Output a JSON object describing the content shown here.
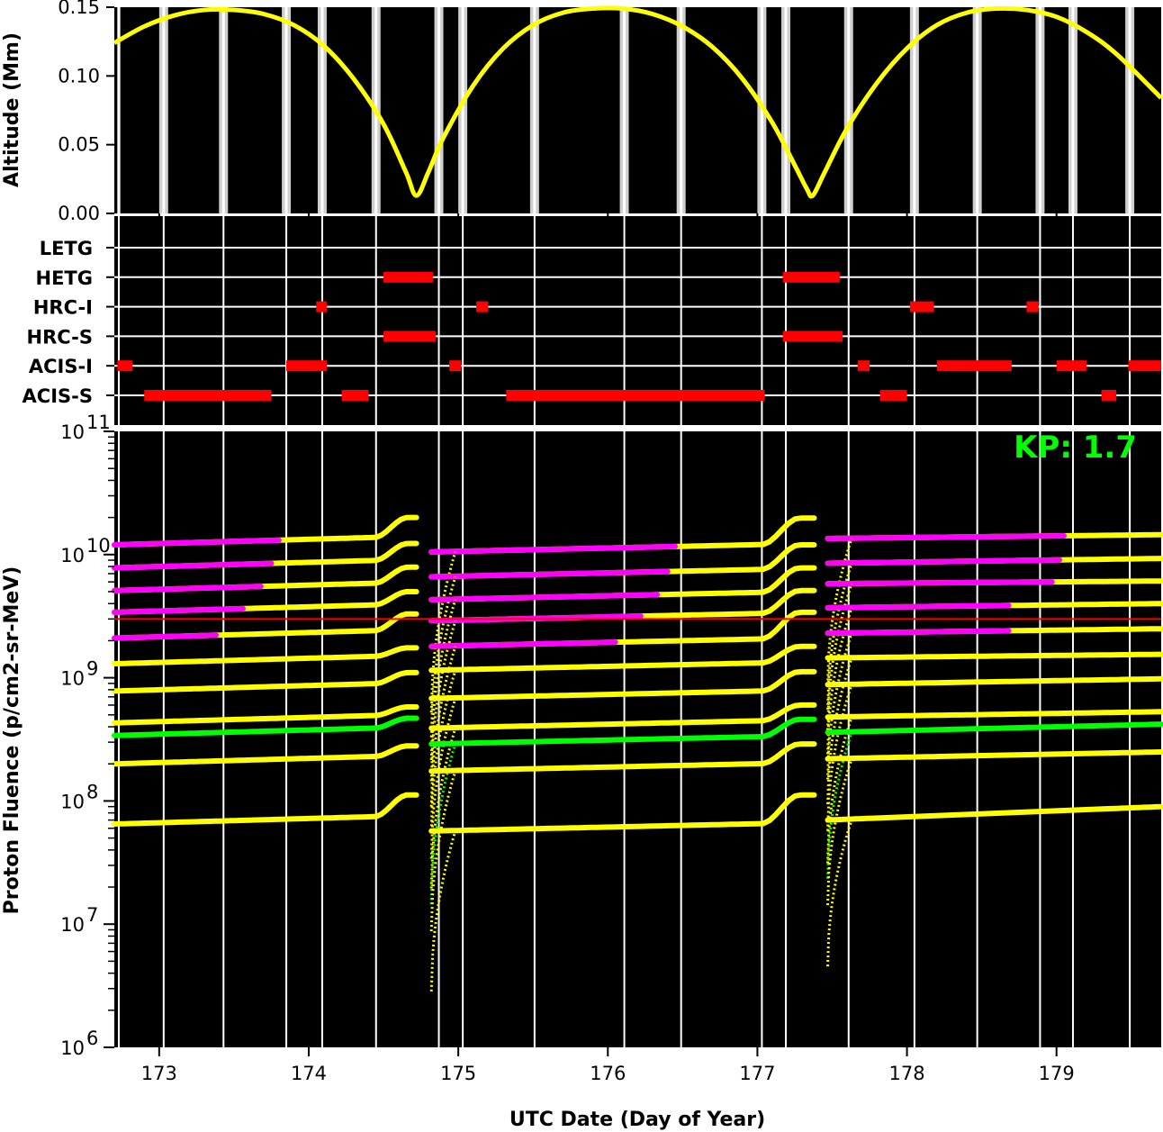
{
  "chart_data": [
    {
      "type": "line",
      "panel": "altitude",
      "ylabel": "Altitude (Mm)",
      "xlim": [
        172.7,
        179.7
      ],
      "ylim": [
        0,
        0.15
      ],
      "yticks": [
        "0.00",
        "0.05",
        "0.10",
        "0.15"
      ],
      "series": [
        {
          "color": "#ffff00",
          "x": [
            172.7,
            172.9,
            173.1,
            173.3,
            173.5,
            173.7,
            173.9,
            174.1,
            174.3,
            174.5,
            174.65,
            174.72,
            174.8,
            174.9,
            175.1,
            175.3,
            175.5,
            175.7,
            175.9,
            176.1,
            176.3,
            176.5,
            176.7,
            176.9,
            177.1,
            177.25,
            177.33,
            177.37,
            177.45,
            177.6,
            177.8,
            178.0,
            178.2,
            178.4,
            178.6,
            178.8,
            179.0,
            179.2,
            179.4,
            179.7
          ],
          "y": [
            0.124,
            0.136,
            0.144,
            0.148,
            0.148,
            0.145,
            0.137,
            0.122,
            0.098,
            0.065,
            0.03,
            0.013,
            0.03,
            0.055,
            0.093,
            0.12,
            0.137,
            0.146,
            0.149,
            0.149,
            0.145,
            0.136,
            0.121,
            0.098,
            0.066,
            0.035,
            0.018,
            0.013,
            0.03,
            0.062,
            0.095,
            0.12,
            0.137,
            0.146,
            0.149,
            0.148,
            0.143,
            0.132,
            0.116,
            0.084
          ]
        }
      ],
      "shaded_intervals": [
        [
          172.72,
          172.74
        ],
        [
          173.0,
          173.06
        ],
        [
          173.4,
          173.46
        ],
        [
          173.82,
          173.88
        ],
        [
          174.06,
          174.12
        ],
        [
          174.42,
          174.48
        ],
        [
          174.84,
          174.9
        ],
        [
          175.0,
          175.06
        ],
        [
          175.48,
          175.54
        ],
        [
          176.08,
          176.14
        ],
        [
          176.46,
          176.52
        ],
        [
          177.0,
          177.06
        ],
        [
          177.16,
          177.22
        ],
        [
          177.58,
          177.64
        ],
        [
          178.02,
          178.08
        ],
        [
          178.44,
          178.5
        ],
        [
          178.86,
          178.92
        ],
        [
          179.08,
          179.14
        ],
        [
          179.46,
          179.52
        ]
      ]
    },
    {
      "type": "scatter",
      "panel": "instruments",
      "instruments": [
        "LETG",
        "HETG",
        "HRC-I",
        "HRC-S",
        "ACIS-I",
        "ACIS-S"
      ],
      "color": "#ff0000",
      "segments": [
        {
          "instrument": "HETG",
          "start": 174.5,
          "end": 174.83
        },
        {
          "instrument": "HETG",
          "start": 177.17,
          "end": 177.55
        },
        {
          "instrument": "HRC-I",
          "start": 174.05,
          "end": 174.12
        },
        {
          "instrument": "HRC-I",
          "start": 175.12,
          "end": 175.2
        },
        {
          "instrument": "HRC-I",
          "start": 178.02,
          "end": 178.18
        },
        {
          "instrument": "HRC-I",
          "start": 178.8,
          "end": 178.88
        },
        {
          "instrument": "HRC-S",
          "start": 174.5,
          "end": 174.85
        },
        {
          "instrument": "HRC-S",
          "start": 177.17,
          "end": 177.57
        },
        {
          "instrument": "ACIS-I",
          "start": 172.72,
          "end": 172.82
        },
        {
          "instrument": "ACIS-I",
          "start": 173.85,
          "end": 174.12
        },
        {
          "instrument": "ACIS-I",
          "start": 174.94,
          "end": 175.02
        },
        {
          "instrument": "ACIS-I",
          "start": 177.67,
          "end": 177.75
        },
        {
          "instrument": "ACIS-I",
          "start": 178.2,
          "end": 178.7
        },
        {
          "instrument": "ACIS-I",
          "start": 179.0,
          "end": 179.2
        },
        {
          "instrument": "ACIS-I",
          "start": 179.48,
          "end": 179.7
        },
        {
          "instrument": "ACIS-S",
          "start": 172.9,
          "end": 173.75
        },
        {
          "instrument": "ACIS-S",
          "start": 174.22,
          "end": 174.4
        },
        {
          "instrument": "ACIS-S",
          "start": 175.32,
          "end": 177.05
        },
        {
          "instrument": "ACIS-S",
          "start": 177.82,
          "end": 178.0
        },
        {
          "instrument": "ACIS-S",
          "start": 179.3,
          "end": 179.4
        }
      ]
    },
    {
      "type": "scatter",
      "panel": "fluence",
      "xlabel": "UTC Date (Day of Year)",
      "ylabel": "Proton Fluence (p/cm2-sr-MeV)",
      "xlim": [
        172.7,
        179.7
      ],
      "ylim": [
        1000000,
        100000000000
      ],
      "yscale": "log",
      "xticks": [
        "173",
        "174",
        "175",
        "176",
        "177",
        "178",
        "179"
      ],
      "ytick_exponents": [
        "6",
        "7",
        "8",
        "9",
        "10",
        "11"
      ],
      "threshold": 3000000000,
      "threshold_color": "#ff0000",
      "annotation": "KP: 1.7",
      "orbit_segments": [
        {
          "start": 172.7,
          "end": 174.72,
          "rise_start": 174.44,
          "rise_end": 174.66
        },
        {
          "start": 174.82,
          "end": 177.38,
          "rise_start": 177.03,
          "rise_end": 177.28
        },
        {
          "start": 177.47,
          "end": 179.7,
          "rise_start": 179.7,
          "rise_end": 179.7
        }
      ],
      "curves": [
        {
          "seg_values": [
            [
              12000000000,
              20000000000
            ],
            [
              10500000000,
              19800000000
            ],
            [
              13500000000,
              14500000000
            ]
          ],
          "magenta_until": [
            173.8,
            176.45,
            179.05
          ]
        },
        {
          "seg_values": [
            [
              7800000000,
              12300000000
            ],
            [
              6600000000,
              12000000000
            ],
            [
              8500000000,
              9300000000
            ]
          ],
          "magenta_until": [
            173.75,
            176.4,
            179.02
          ]
        },
        {
          "seg_values": [
            [
              5100000000,
              7900000000
            ],
            [
              4300000000,
              7800000000
            ],
            [
              5800000000,
              6100000000
            ]
          ],
          "magenta_until": [
            173.68,
            176.33,
            178.97
          ]
        },
        {
          "seg_values": [
            [
              3400000000,
              5000000000
            ],
            [
              2900000000,
              5100000000
            ],
            [
              3700000000,
              4000000000
            ]
          ],
          "magenta_until": [
            173.56,
            176.22,
            178.68
          ]
        },
        {
          "seg_values": [
            [
              2100000000,
              3300000000
            ],
            [
              1800000000,
              3400000000
            ],
            [
              2300000000,
              2500000000
            ]
          ],
          "magenta_until": [
            173.38,
            176.05,
            178.68
          ]
        },
        {
          "seg_values": [
            [
              1300000000,
              1750000000
            ],
            [
              1150000000,
              1800000000
            ],
            [
              1450000000,
              1550000000
            ]
          ],
          "magenta_until": null
        },
        {
          "seg_values": [
            [
              780000000,
              1100000000
            ],
            [
              680000000,
              1120000000
            ],
            [
              880000000,
              980000000
            ]
          ],
          "magenta_until": null
        },
        {
          "seg_values": [
            [
              430000000,
              580000000
            ],
            [
              390000000,
              600000000
            ],
            [
              480000000,
              530000000
            ]
          ],
          "magenta_until": null
        },
        {
          "seg_values": [
            [
              340000000,
              470000000
            ],
            [
              290000000,
              460000000
            ],
            [
              360000000,
              420000000
            ]
          ],
          "magenta_until": null,
          "green": true
        },
        {
          "seg_values": [
            [
              200000000,
              280000000
            ],
            [
              175000000,
              290000000
            ],
            [
              220000000,
              250000000
            ]
          ],
          "magenta_until": null
        },
        {
          "seg_values": [
            [
              65000000,
              112000000
            ],
            [
              57000000,
              112000000
            ],
            [
              70000000,
              90000000
            ]
          ],
          "magenta_until": null
        }
      ]
    }
  ]
}
